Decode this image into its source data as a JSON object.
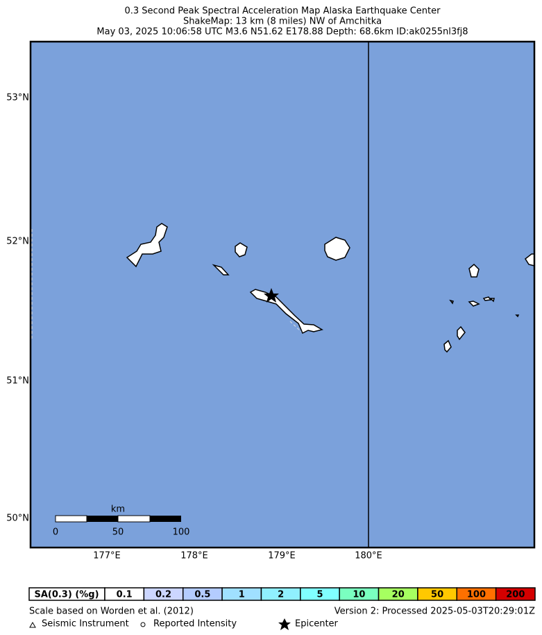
{
  "header": {
    "title": [
      "0.3 Second Peak Spectral Acceleration Map Alaska Earthquake Center",
      "ShakeMap: 13 km (8 miles) NW of Amchitka",
      "May 03, 2025 10:06:58 UTC M3.6 N51.62 E178.88 Depth: 68.6km ID:ak0255nl3fj8"
    ]
  },
  "map": {
    "lat_labels": [
      "53°N",
      "52°N",
      "51°N",
      "50°N"
    ],
    "lon_labels": [
      "177°E",
      "178°E",
      "179°E",
      "180°E"
    ],
    "scale_bar": {
      "unit": "km",
      "labels": [
        "0",
        "50",
        "100"
      ]
    }
  },
  "legend": {
    "header": "SA(0.3) (%g)",
    "bins": [
      {
        "label": "0.1",
        "color": "#ffffff"
      },
      {
        "label": "0.2",
        "color": "#ccd6ff"
      },
      {
        "label": "0.5",
        "color": "#b4ccff"
      },
      {
        "label": "1",
        "color": "#a0e0ff"
      },
      {
        "label": "2",
        "color": "#90f0ff"
      },
      {
        "label": "5",
        "color": "#80ffff"
      },
      {
        "label": "10",
        "color": "#7affc0"
      },
      {
        "label": "20",
        "color": "#a6ff60"
      },
      {
        "label": "50",
        "color": "#ffc800"
      },
      {
        "label": "100",
        "color": "#ff7000"
      },
      {
        "label": "200",
        "color": "#d40000"
      }
    ],
    "reference": "Scale based on Worden et al. (2012)",
    "version": "Version 2: Processed 2025-05-03T20:29:01Z",
    "symbols": [
      "Seismic Instrument",
      "Reported Intensity",
      "Epicenter"
    ]
  }
}
